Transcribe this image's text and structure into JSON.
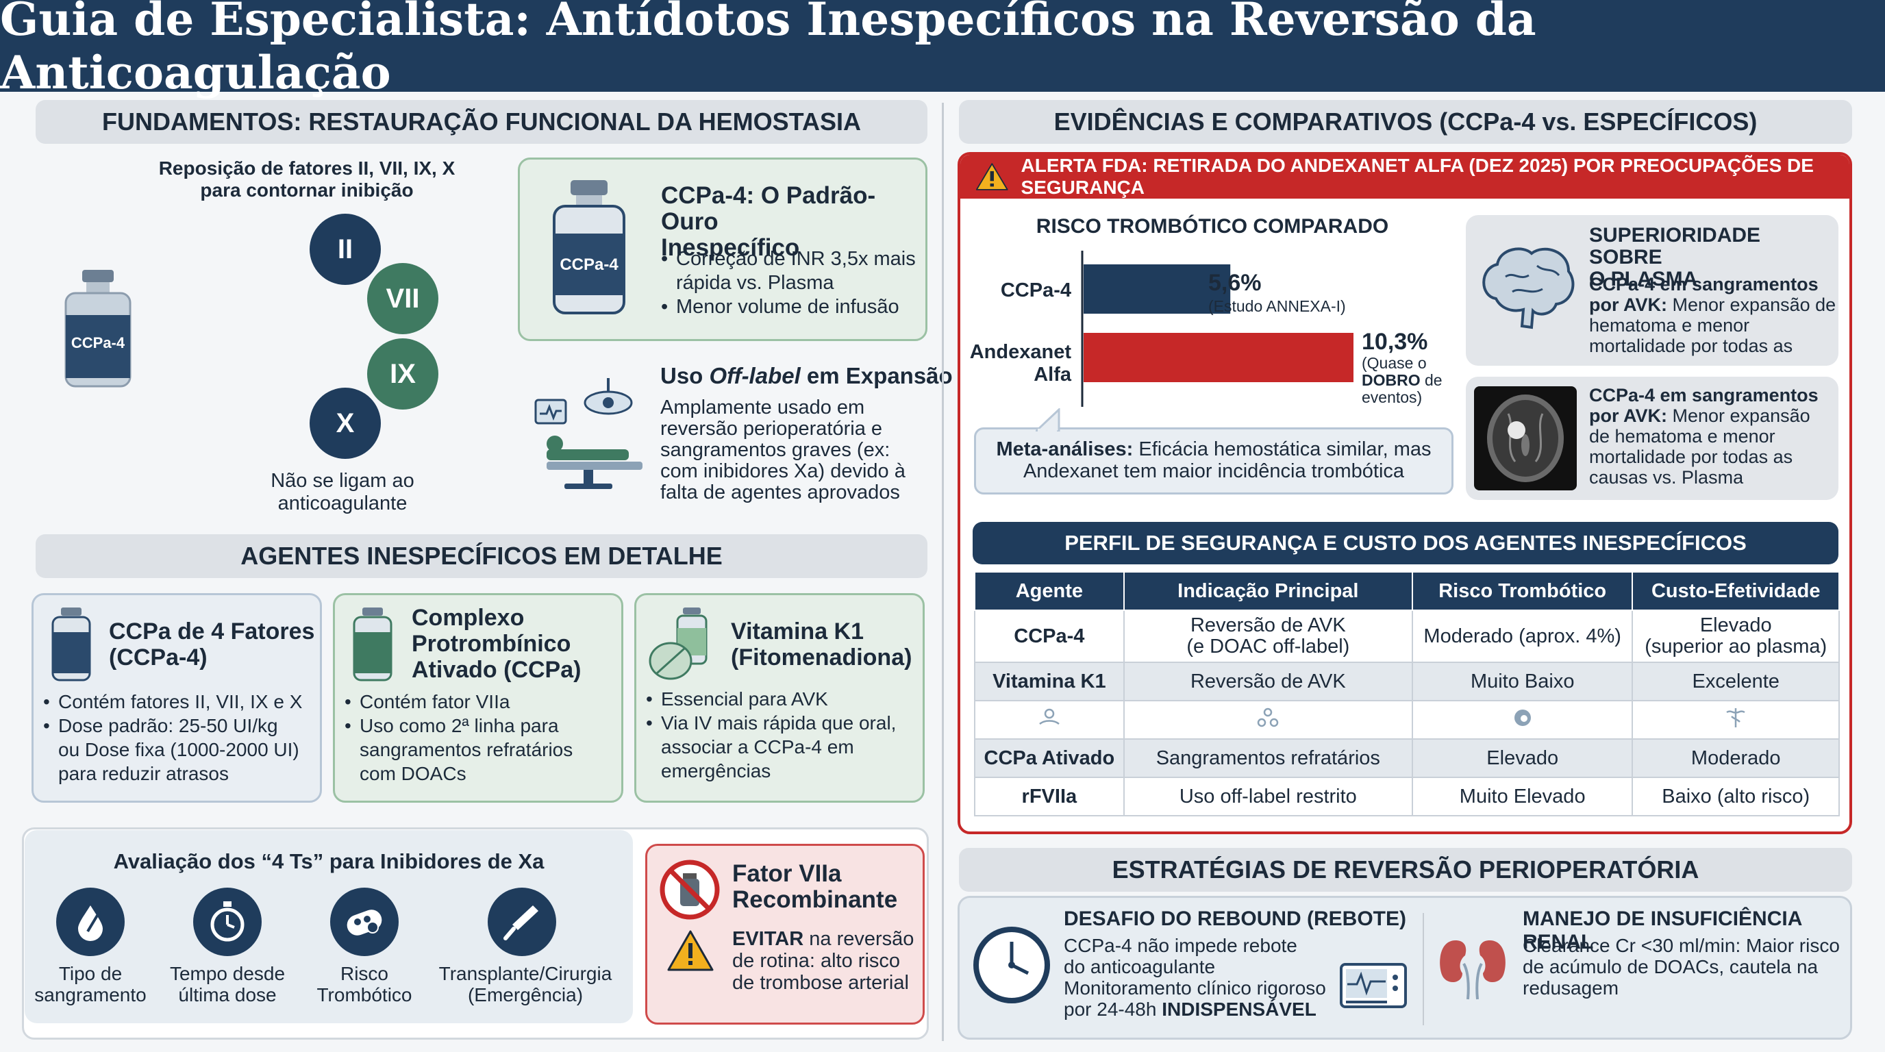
{
  "title": "Guia de Especialista: Antídotos Inespecíficos na Reversão da Anticoagulação",
  "fundamentos": {
    "heading": "FUNDAMENTOS: RESTAURAÇÃO FUNCIONAL DA HEMOSTASIA",
    "vial_label": "CCPa-4",
    "factors_title_1": "Reposição de fatores II, VII, IX, X",
    "factors_title_2": "para contornar inibição",
    "factors": [
      {
        "label": "II",
        "color": "#1f3c5c"
      },
      {
        "label": "VII",
        "color": "#3f7a61"
      },
      {
        "label": "IX",
        "color": "#3f7a61"
      },
      {
        "label": "X",
        "color": "#1f3c5c"
      }
    ],
    "note_1": "Não se ligam ao",
    "note_2": "anticoagulante"
  },
  "gold": {
    "vial_label": "CCPa-4",
    "title_1": "CCPa-4: O Padrão-Ouro",
    "title_2": "Inespecífico",
    "bullets": [
      [
        "Correção de INR 3,5x mais",
        "rápida vs. Plasma"
      ],
      [
        "Menor volume de infusão"
      ]
    ]
  },
  "offlabel": {
    "title_pre": "Uso ",
    "title_em": "Off-label",
    "title_post": " em Expansão",
    "lines": [
      "Amplamente usado em",
      "reversão perioperatória e",
      "sangramentos graves (ex:",
      "com inibidores Xa) devido à",
      "falta de agentes aprovados"
    ]
  },
  "agentes": {
    "heading": "AGENTES INESPECÍFICOS EM DETALHE",
    "cards": [
      {
        "title": [
          "CCPa de 4 Fatores",
          "(CCPa-4)"
        ],
        "bullets": [
          [
            "Contém fatores II, VII, IX e X"
          ],
          [
            "Dose padrão: 25-50 UI/kg",
            "ou Dose fixa (1000-2000 UI)",
            "para reduzir atrasos"
          ]
        ]
      },
      {
        "title": [
          "Complexo",
          "Protrombínico",
          "Ativado (CCPa)"
        ],
        "bullets": [
          [
            "Contém fator VIIa"
          ],
          [
            "Uso como 2ª linha para",
            "sangramentos refratários",
            "com DOACs"
          ]
        ]
      },
      {
        "title": [
          "Vitamina K1",
          "(Fitomenadiona)"
        ],
        "bullets": [
          [
            "Essencial para AVK"
          ],
          [
            "Via IV mais rápida que oral,",
            "associar a CCPa-4 em",
            "emergências"
          ]
        ]
      }
    ]
  },
  "fourTs": {
    "title": "Avaliação dos “4 Ts” para Inibidores de Xa",
    "items": [
      {
        "icon": "blood-drop-icon",
        "label": [
          "Tipo de",
          "sangramento"
        ]
      },
      {
        "icon": "stopwatch-icon",
        "label": [
          "Tempo desde",
          "última dose"
        ]
      },
      {
        "icon": "clot-icon",
        "label": [
          "Risco",
          "Trombótico"
        ]
      },
      {
        "icon": "scalpel-icon",
        "label": [
          "Transplante/Cirurgia",
          "(Emergência)"
        ]
      }
    ]
  },
  "rfviia": {
    "title_1": "Fator VIIa",
    "title_2": "Recombinante",
    "warn_bold": "EVITAR",
    "warn_1": " na reversão",
    "warn_2": "de rotina: alto risco",
    "warn_3": "de trombose arterial"
  },
  "evidencias": {
    "heading": "EVIDÊNCIAS E COMPARATIVOS (CCPa-4 vs. ESPECÍFICOS)",
    "alert": "ALERTA FDA: RETIRADA DO ANDEXANET ALFA (DEZ 2025) POR PREOCUPAÇÕES DE SEGURANÇA"
  },
  "chart_data": {
    "type": "bar",
    "orientation": "horizontal",
    "title": "RISCO TROMBÓTICO COMPARADO",
    "categories": [
      "CCPa-4",
      "Andexanet Alfa"
    ],
    "values": [
      5.6,
      10.3
    ],
    "value_labels": [
      "5,6%",
      "10,3%"
    ],
    "notes": [
      [
        "(Estudo ANNEXA-I)"
      ],
      [
        "(Quase o",
        "DOBRO de",
        "eventos)"
      ]
    ],
    "colors": [
      "#1f3c5c",
      "#c62828"
    ],
    "xlim": [
      0,
      10.3
    ],
    "grid": false
  },
  "chart_labels": {
    "cat0": "CCPa-4",
    "cat1_1": "Andexanet",
    "cat1_2": "Alfa",
    "note0": "(Estudo ANNEXA-I)",
    "note1_1": "(Quase o",
    "note1_2_bold": "DOBRO",
    "note1_2": " de",
    "note1_3": "eventos)"
  },
  "meta": {
    "bold": "Meta-análises:",
    "text_1": " Eficácia hemostática similar, mas",
    "text_2": "Andexanet tem maior incidência trombótica"
  },
  "plasma": {
    "title_1": "SUPERIORIDADE SOBRE",
    "title_2": "O PLASMA",
    "p1_bold_1": "CCPa-4 em sangramentos",
    "p1_bold_2": "por AVK:",
    "p1_1": " Menor expansão de",
    "p1_2": "hematoma e menor",
    "p1_3": "mortalidade por todas as",
    "p2_bold_1": "CCPa-4 em sangramentos",
    "p2_bold_2": "por AVK:",
    "p2_1": " Menor expansão",
    "p2_2": "de hematoma e menor",
    "p2_3": "mortalidade por todas as",
    "p2_4": "causas vs. Plasma"
  },
  "perfil": {
    "heading": "PERFIL DE SEGURANÇA E CUSTO DOS AGENTES INESPECÍFICOS",
    "columns": [
      "Agente",
      "Indicação Principal",
      "Risco Trombótico",
      "Custo-Efetividade"
    ],
    "rows": [
      [
        "CCPa-4",
        "Reversão de AVK\n(e DOAC off-label)",
        "Moderado (aprox. 4%)",
        "Elevado\n(superior ao plasma)"
      ],
      [
        "Vitamina K1",
        "Reversão de AVK",
        "Muito Baixo",
        "Excelente"
      ],
      [
        "CCPa Ativado",
        "Sangramentos refratários",
        "Elevado",
        "Moderado"
      ],
      [
        "rFVIIa",
        "Uso off-label restrito",
        "Muito Elevado",
        "Baixo (alto risco)"
      ]
    ],
    "icon_row": [
      "hand-icon",
      "molecule-icon",
      "pill-icon",
      "caduceus-icon"
    ]
  },
  "estrategias": {
    "heading": "ESTRATÉGIAS DE REVERSÃO PERIOPERATÓRIA",
    "rebound_title": "DESAFIO DO REBOUND (REBOTE)",
    "rebound_1": "CCPa-4 não impede rebote",
    "rebound_2": "do anticoagulante",
    "rebound_3": "Monitoramento clínico rigoroso",
    "rebound_4": "por 24-48h ",
    "rebound_4_bold": "INDISPENSÁVEL",
    "renal_title": "MANEJO DE INSUFICIÊNCIA RENAL",
    "renal_1": "Clearance Cr <30 ml/min: Maior risco",
    "renal_2": "de acúmulo de DOACs, cautela na",
    "renal_3": "redusagem"
  }
}
